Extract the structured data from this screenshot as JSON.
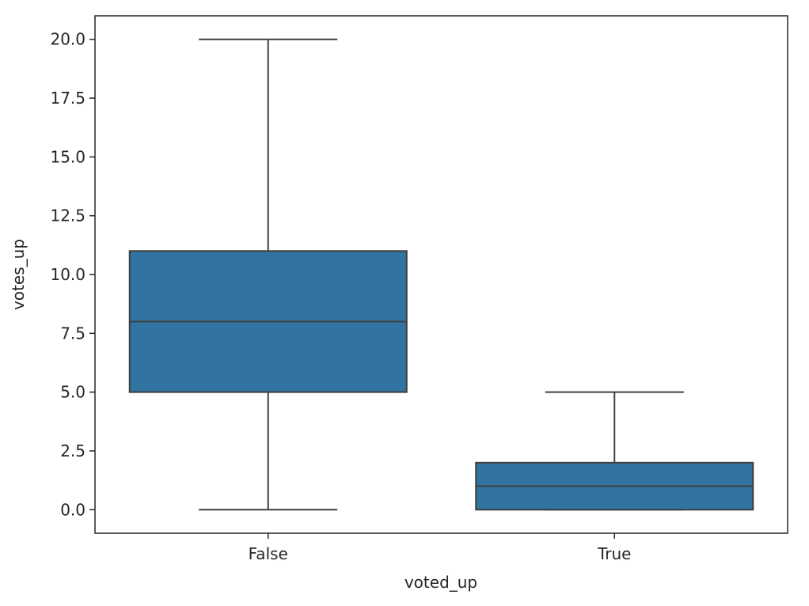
{
  "chart_data": {
    "type": "box",
    "title": "",
    "xlabel": "voted_up",
    "ylabel": "votes_up",
    "categories": [
      "False",
      "True"
    ],
    "boxes": [
      {
        "category": "False",
        "whisker_low": 0,
        "q1": 5,
        "median": 8,
        "q3": 11,
        "whisker_high": 20
      },
      {
        "category": "True",
        "whisker_low": 0,
        "q1": 0,
        "median": 1,
        "q3": 2,
        "whisker_high": 5
      }
    ],
    "ylim": [
      -1,
      21
    ],
    "yticks": [
      "0.0",
      "2.5",
      "5.0",
      "7.5",
      "10.0",
      "12.5",
      "15.0",
      "17.5",
      "20.0"
    ],
    "ytick_values": [
      0,
      2.5,
      5,
      7.5,
      10,
      12.5,
      15,
      17.5,
      20
    ],
    "grid": false,
    "box_color": "#3274a1",
    "line_color": "#3f3f3f"
  }
}
